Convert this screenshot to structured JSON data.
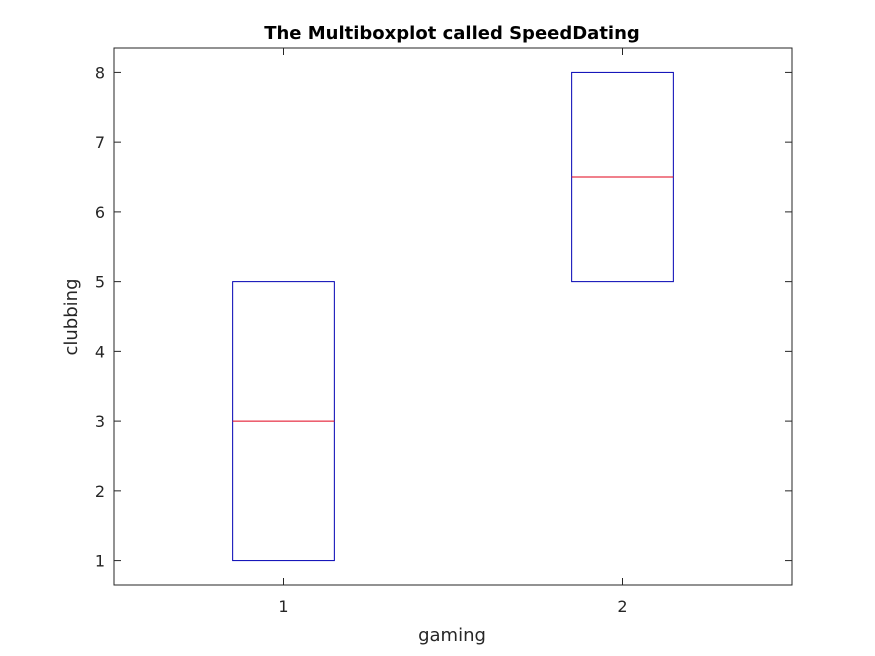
{
  "chart_data": {
    "type": "boxplot",
    "title": "The Multiboxplot called SpeedDating",
    "xlabel": "gaming",
    "ylabel": "clubbing",
    "categories": [
      "1",
      "2"
    ],
    "boxes": [
      {
        "category": "1",
        "q1": 1,
        "median": 3,
        "q3": 5
      },
      {
        "category": "2",
        "q1": 5,
        "median": 6.5,
        "q3": 8
      }
    ],
    "xlim": [
      0.5,
      2.5
    ],
    "ylim": [
      0.65,
      8.35
    ],
    "yticks": [
      1,
      2,
      3,
      4,
      5,
      6,
      7,
      8
    ],
    "grid": false,
    "colors": {
      "box": "#0000b3",
      "median": "#e0001a",
      "axis": "#262626"
    }
  }
}
